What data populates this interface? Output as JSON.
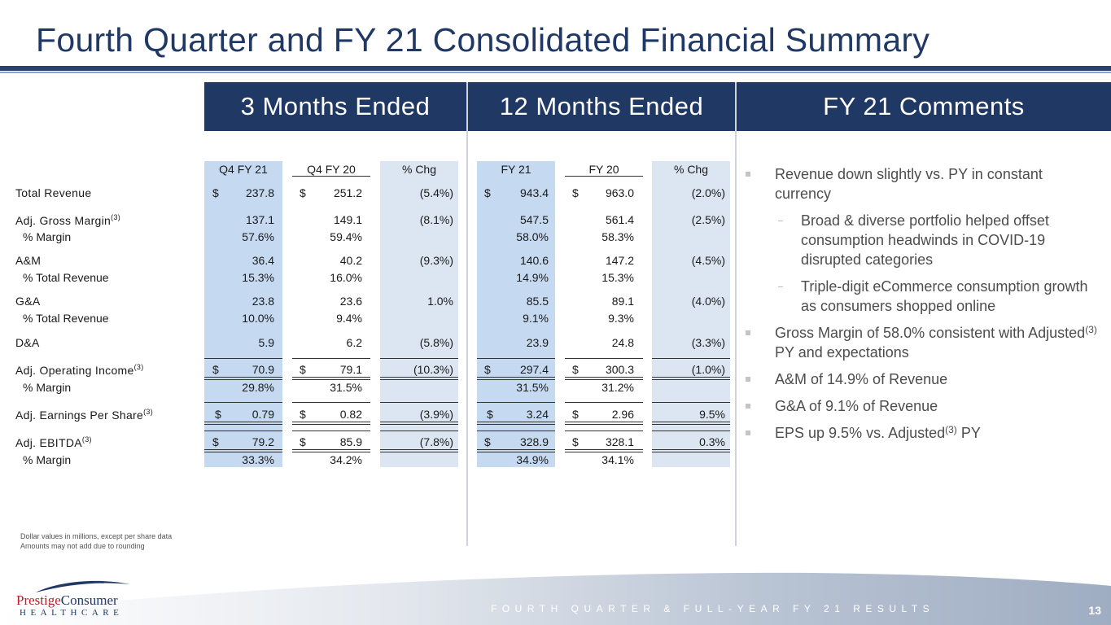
{
  "title": "Fourth Quarter and FY 21 Consolidated Financial Summary",
  "headers": {
    "three_months": "3 Months Ended",
    "twelve_months": "12 Months Ended",
    "comments": "FY 21 Comments"
  },
  "columns": {
    "q4fy21": "Q4 FY 21",
    "q4fy20": "Q4 FY 20",
    "pchg_q": "% Chg",
    "fy21": "FY 21",
    "fy20": "FY 20",
    "pchg_y": "% Chg"
  },
  "dollar_sign": "$",
  "superscript": "(3)",
  "rows": [
    {
      "label": "Total Revenue",
      "q4fy21": "237.8",
      "q4fy20": "251.2",
      "pchg_q": "(5.4%)",
      "fy21": "943.4",
      "fy20": "963.0",
      "pchg_y": "(2.0%)"
    },
    {
      "label": "Adj. Gross Margin",
      "q4fy21": "137.1",
      "q4fy20": "149.1",
      "pchg_q": "(8.1%)",
      "fy21": "547.5",
      "fy20": "561.4",
      "pchg_y": "(2.5%)"
    },
    {
      "label": "% Margin",
      "q4fy21": "57.6%",
      "q4fy20": "59.4%",
      "fy21": "58.0%",
      "fy20": "58.3%"
    },
    {
      "label": "A&M",
      "q4fy21": "36.4",
      "q4fy20": "40.2",
      "pchg_q": "(9.3%)",
      "fy21": "140.6",
      "fy20": "147.2",
      "pchg_y": "(4.5%)"
    },
    {
      "label": "% Total Revenue",
      "q4fy21": "15.3%",
      "q4fy20": "16.0%",
      "fy21": "14.9%",
      "fy20": "15.3%"
    },
    {
      "label": "G&A",
      "q4fy21": "23.8",
      "q4fy20": "23.6",
      "pchg_q": "1.0%",
      "fy21": "85.5",
      "fy20": "89.1",
      "pchg_y": "(4.0%)"
    },
    {
      "label": "% Total Revenue",
      "q4fy21": "10.0%",
      "q4fy20": "9.4%",
      "fy21": "9.1%",
      "fy20": "9.3%"
    },
    {
      "label": "D&A",
      "q4fy21": "5.9",
      "q4fy20": "6.2",
      "pchg_q": "(5.8%)",
      "fy21": "23.9",
      "fy20": "24.8",
      "pchg_y": "(3.3%)"
    },
    {
      "label": "Adj. Operating Income",
      "q4fy21": "70.9",
      "q4fy20": "79.1",
      "pchg_q": "(10.3%)",
      "fy21": "297.4",
      "fy20": "300.3",
      "pchg_y": "(1.0%)"
    },
    {
      "label": "% Margin",
      "q4fy21": "29.8%",
      "q4fy20": "31.5%",
      "fy21": "31.5%",
      "fy20": "31.2%"
    },
    {
      "label": "Adj. Earnings Per Share",
      "q4fy21": "0.79",
      "q4fy20": "0.82",
      "pchg_q": "(3.9%)",
      "fy21": "3.24",
      "fy20": "2.96",
      "pchg_y": "9.5%"
    },
    {
      "label": "Adj. EBITDA",
      "q4fy21": "79.2",
      "q4fy20": "85.9",
      "pchg_q": "(7.8%)",
      "fy21": "328.9",
      "fy20": "328.1",
      "pchg_y": "0.3%"
    },
    {
      "label": "% Margin",
      "q4fy21": "33.3%",
      "q4fy20": "34.2%",
      "fy21": "34.9%",
      "fy20": "34.1%"
    }
  ],
  "comments": {
    "b1": "Revenue down slightly vs. PY in constant currency",
    "s1": "Broad & diverse portfolio helped offset consumption headwinds in COVID-19 disrupted categories",
    "s2": "Triple-digit eCommerce consumption growth as consumers shopped online",
    "b2_pre": "Gross Margin of 58.0% consistent with Adjusted",
    "b2_post": " PY and expectations",
    "b3": "A&M of 14.9% of Revenue",
    "b4": "G&A of 9.1% of Revenue",
    "b5_pre": "EPS up 9.5% vs. Adjusted",
    "b5_post": " PY"
  },
  "footnotes": {
    "line1": "Dollar values in millions, except per share data",
    "line2": "Amounts may not add due to rounding"
  },
  "footer": {
    "text": "FOURTH QUARTER & FULL-YEAR FY 21 RESULTS",
    "page": "13"
  },
  "logo": {
    "prestige": "Prestige",
    "consumer": "Consumer",
    "healthcare": "HEALTHCARE"
  },
  "colors": {
    "navy": "#1f3864",
    "shade_blue": "#c5d9f1",
    "shade_gray": "#dce6f2",
    "logo_red": "#b1232b"
  }
}
